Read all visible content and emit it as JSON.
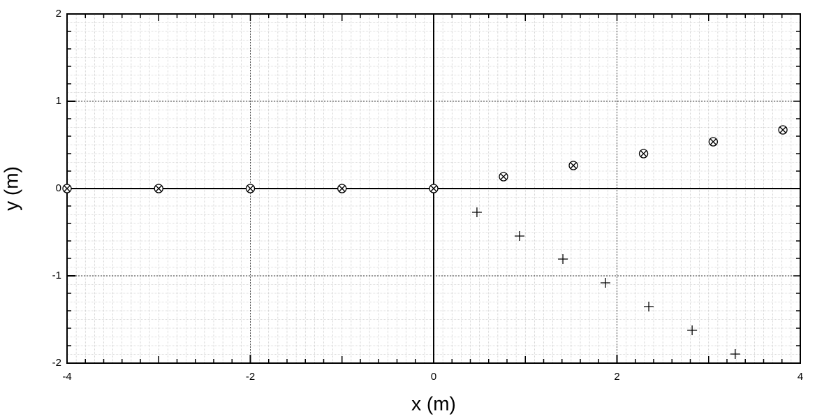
{
  "chart_data": {
    "type": "scatter",
    "xlabel": "x (m)",
    "ylabel": "y (m)",
    "xlim": [
      -4,
      4
    ],
    "ylim": [
      -2,
      2
    ],
    "xticks": [
      -4,
      -2,
      0,
      2,
      4
    ],
    "yticks": [
      -2,
      -1,
      0,
      1,
      2
    ],
    "grid": true,
    "series": [
      {
        "marker": "circle-x",
        "color": "#000000",
        "x": [
          -4,
          -3,
          -2,
          -1,
          0,
          0.762,
          1.524,
          2.29,
          3.05,
          3.81
        ],
        "values": [
          0,
          0,
          0,
          0,
          0,
          0.136,
          0.264,
          0.4,
          0.536,
          0.672
        ]
      },
      {
        "marker": "plus",
        "color": "#000000",
        "x": [
          0.472,
          0.937,
          1.41,
          1.874,
          2.347,
          2.82,
          3.29
        ],
        "values": [
          -0.272,
          -0.544,
          -0.808,
          -1.08,
          -1.352,
          -1.624,
          -1.896
        ]
      }
    ]
  }
}
